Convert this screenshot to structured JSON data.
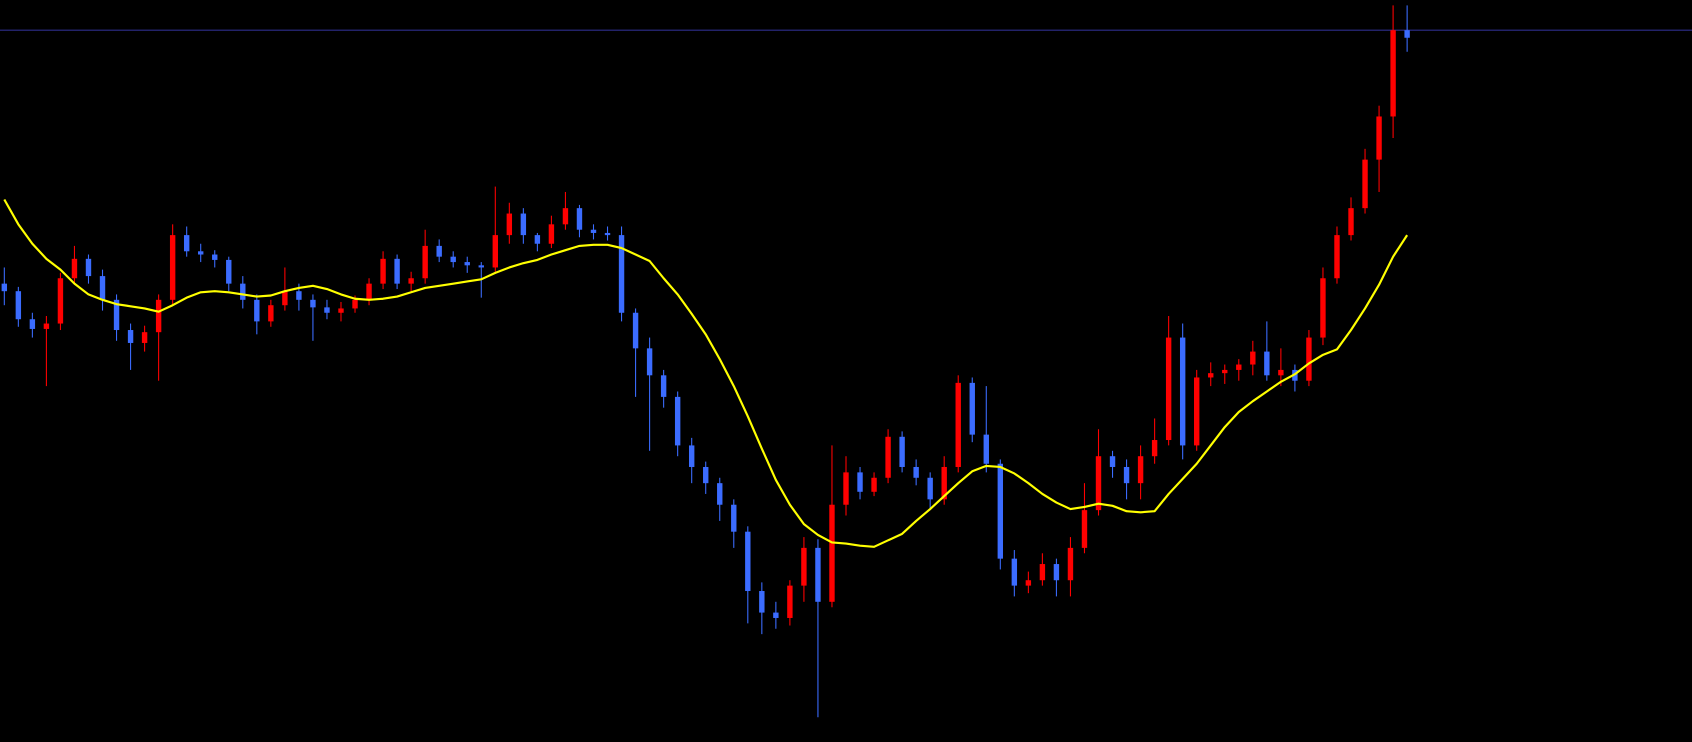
{
  "chart_data": {
    "type": "candlestick",
    "ylim": [
      0,
      688
    ],
    "up_color": "#ff0000",
    "down_color": "#3b6cff",
    "open": [
      425,
      418,
      392,
      383,
      388,
      430,
      448,
      432,
      410,
      382,
      370,
      380,
      410,
      470,
      455,
      452,
      447,
      425,
      410,
      390,
      405,
      418,
      410,
      403,
      398,
      402,
      410,
      425,
      448,
      425,
      430,
      460,
      450,
      445,
      442,
      440,
      470,
      490,
      470,
      462,
      480,
      495,
      475,
      472,
      470,
      398,
      365,
      340,
      320,
      275,
      255,
      240,
      220,
      195,
      140,
      120,
      115,
      145,
      180,
      130,
      220,
      250,
      232,
      245,
      283,
      255,
      245,
      225,
      255,
      333,
      285,
      258,
      170,
      145,
      150,
      165,
      150,
      180,
      215,
      265,
      255,
      240,
      265,
      280,
      375,
      275,
      338,
      342,
      345,
      350,
      362,
      340,
      345,
      335,
      375,
      430,
      470,
      495,
      540,
      580,
      660
    ],
    "high": [
      440,
      422,
      398,
      395,
      435,
      460,
      452,
      438,
      415,
      388,
      386,
      415,
      480,
      478,
      462,
      456,
      450,
      432,
      415,
      410,
      440,
      425,
      415,
      410,
      408,
      414,
      430,
      455,
      452,
      436,
      475,
      466,
      455,
      450,
      445,
      515,
      500,
      495,
      472,
      488,
      510,
      498,
      480,
      478,
      478,
      402,
      375,
      345,
      325,
      282,
      260,
      245,
      225,
      200,
      148,
      130,
      150,
      190,
      188,
      275,
      265,
      255,
      250,
      290,
      288,
      262,
      250,
      265,
      340,
      338,
      330,
      262,
      178,
      158,
      175,
      170,
      190,
      240,
      290,
      270,
      262,
      275,
      300,
      395,
      388,
      345,
      352,
      350,
      355,
      372,
      390,
      365,
      350,
      382,
      440,
      478,
      505,
      550,
      590,
      683,
      683
    ],
    "low": [
      405,
      385,
      375,
      330,
      382,
      425,
      425,
      400,
      372,
      345,
      362,
      335,
      405,
      450,
      445,
      440,
      418,
      402,
      378,
      385,
      400,
      400,
      372,
      392,
      390,
      398,
      405,
      420,
      420,
      418,
      425,
      445,
      440,
      435,
      412,
      436,
      462,
      462,
      455,
      458,
      475,
      468,
      466,
      465,
      390,
      320,
      270,
      310,
      265,
      240,
      230,
      205,
      180,
      110,
      100,
      105,
      108,
      130,
      23,
      125,
      210,
      225,
      228,
      240,
      250,
      238,
      215,
      220,
      250,
      278,
      250,
      160,
      135,
      138,
      145,
      135,
      135,
      175,
      210,
      245,
      225,
      225,
      258,
      275,
      262,
      270,
      330,
      332,
      335,
      340,
      335,
      330,
      325,
      330,
      368,
      425,
      465,
      490,
      510,
      560,
      640
    ],
    "close": [
      418,
      392,
      383,
      388,
      430,
      448,
      432,
      410,
      382,
      370,
      380,
      410,
      470,
      455,
      452,
      447,
      425,
      410,
      390,
      405,
      418,
      410,
      403,
      398,
      402,
      410,
      425,
      448,
      425,
      430,
      460,
      450,
      445,
      442,
      440,
      470,
      490,
      470,
      462,
      480,
      495,
      475,
      472,
      470,
      398,
      365,
      340,
      320,
      275,
      255,
      240,
      220,
      195,
      140,
      120,
      115,
      145,
      180,
      130,
      220,
      250,
      232,
      245,
      283,
      255,
      245,
      225,
      255,
      333,
      285,
      258,
      170,
      145,
      150,
      165,
      150,
      180,
      215,
      265,
      255,
      240,
      265,
      280,
      375,
      275,
      338,
      342,
      345,
      350,
      362,
      340,
      345,
      335,
      375,
      430,
      470,
      495,
      540,
      580,
      660,
      653
    ],
    "ma": {
      "color": "#ffff00",
      "values": [
        503,
        480,
        462,
        448,
        438,
        425,
        415,
        410,
        406,
        404,
        402,
        399,
        405,
        412,
        417,
        418,
        417,
        415,
        413,
        414,
        418,
        421,
        423,
        420,
        415,
        411,
        410,
        411,
        413,
        417,
        421,
        423,
        425,
        427,
        429,
        435,
        440,
        444,
        447,
        452,
        456,
        460,
        461,
        461,
        458,
        452,
        446,
        430,
        415,
        397,
        378,
        355,
        330,
        302,
        272,
        243,
        220,
        202,
        192,
        185,
        184,
        182,
        181,
        187,
        193,
        205,
        216,
        228,
        240,
        251,
        256,
        255,
        249,
        240,
        230,
        222,
        216,
        218,
        221,
        219,
        214,
        213,
        214,
        230,
        244,
        258,
        275,
        292,
        306,
        316,
        325,
        334,
        341,
        351,
        359,
        364,
        382,
        402,
        424,
        450,
        470
      ]
    },
    "price_line": {
      "value": 660,
      "color": "#2e2e8c"
    }
  }
}
